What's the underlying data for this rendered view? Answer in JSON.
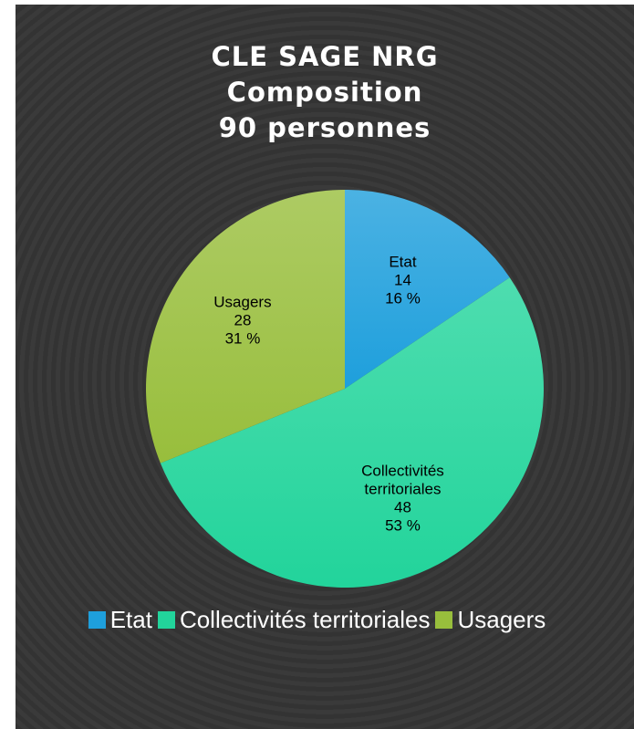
{
  "chart_data": {
    "type": "pie",
    "title_lines": [
      "CLE SAGE NRG",
      "Composition",
      "90 personnes"
    ],
    "categories": [
      "Etat",
      "Collectivités territoriales",
      "Usagers"
    ],
    "values": [
      14,
      48,
      28
    ],
    "percent_labels": [
      "16 %",
      "53 %",
      "31 %"
    ],
    "slice_label_lines": [
      [
        "Etat"
      ],
      [
        "Collectivités",
        "territoriales"
      ],
      [
        "Usagers"
      ]
    ],
    "colors": [
      "#1e9fdc",
      "#22d49b",
      "#98be3c"
    ],
    "legend_position": "bottom",
    "start_angle_deg": 0,
    "direction": "clockwise"
  },
  "legend": {
    "items": [
      {
        "label": "Etat",
        "color": "#1e9fdc"
      },
      {
        "label": "Collectivités territoriales",
        "color": "#22d49b"
      },
      {
        "label": "Usagers",
        "color": "#98be3c"
      }
    ]
  }
}
